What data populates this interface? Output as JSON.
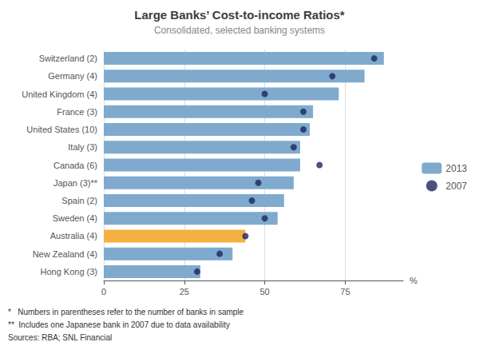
{
  "chart_data": {
    "type": "bar",
    "orientation": "horizontal",
    "title": "Large Banks’ Cost-to-income Ratios*",
    "subtitle": "Consolidated, selected banking systems",
    "xlabel": "%",
    "categories": [
      "Switzerland (2)",
      "Germany (4)",
      "United Kingdom (4)",
      "France (3)",
      "United States (10)",
      "Italy (3)",
      "Canada (6)",
      "Japan (3)**",
      "Spain (2)",
      "Sweden (4)",
      "Australia (4)",
      "New Zealand (4)",
      "Hong Kong (3)"
    ],
    "series": [
      {
        "name": "2013",
        "type": "bar",
        "colors": [
          "#7FAACE",
          "#7FAACE",
          "#7FAACE",
          "#7FAACE",
          "#7FAACE",
          "#7FAACE",
          "#7FAACE",
          "#7FAACE",
          "#7FAACE",
          "#7FAACE",
          "#F5B042",
          "#7FAACE",
          "#7FAACE"
        ],
        "values": [
          87,
          81,
          73,
          65,
          64,
          61,
          61,
          59,
          56,
          54,
          44,
          40,
          30
        ]
      },
      {
        "name": "2007",
        "type": "scatter",
        "color": "#1a2560",
        "marker": "circle",
        "values": [
          84,
          71,
          50,
          62,
          62,
          59,
          67,
          48,
          46,
          50,
          44,
          36,
          29
        ]
      }
    ],
    "xlim": [
      0,
      93
    ],
    "xticks": [
      0,
      25,
      50,
      75
    ],
    "grid": true,
    "legend": "right",
    "annotations": [
      "*   Numbers in parentheses refer to the number of banks in sample",
      "**  Includes one Japanese bank in 2007 due to data availability",
      "Sources: RBA; SNL Financial"
    ]
  }
}
